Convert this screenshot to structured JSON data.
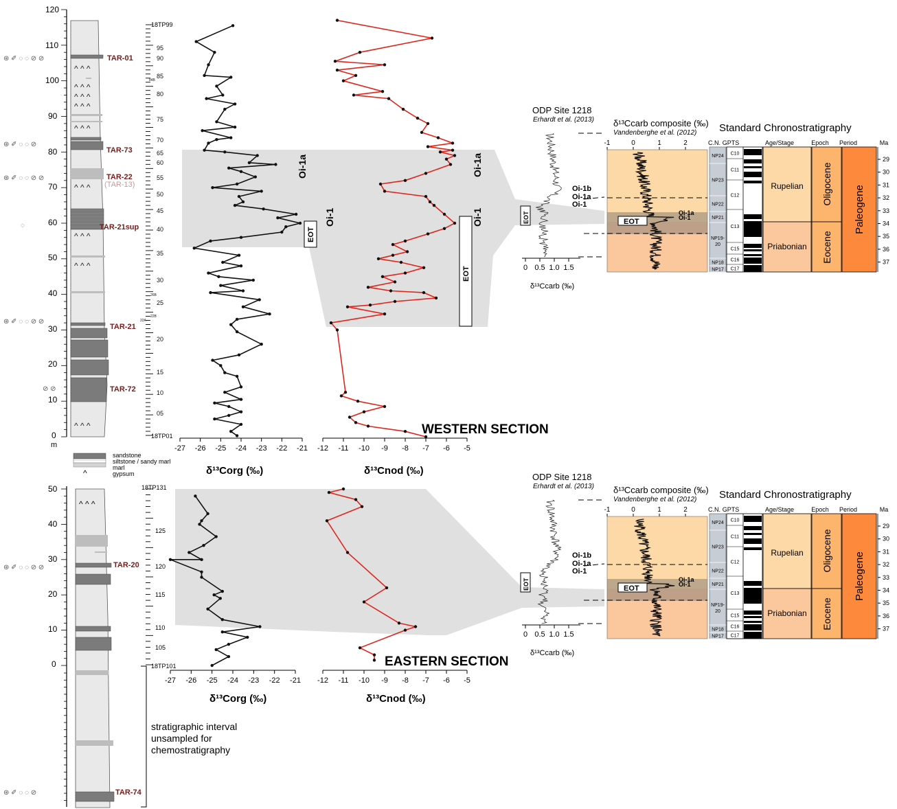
{
  "panels": {
    "western": {
      "label": "WESTERN SECTION",
      "depth_axis": {
        "ticks": [
          "120",
          "110",
          "100",
          "90",
          "80",
          "70",
          "60",
          "50",
          "40",
          "30",
          "20",
          "10",
          "0"
        ],
        "unit": "m"
      },
      "samples": {
        "top": "18TP99",
        "bottom": "18TP01",
        "ticks": [
          "95",
          "90",
          "85",
          "84B",
          "80",
          "75",
          "70",
          "65",
          "60",
          "55",
          "50",
          "45",
          "40",
          "35",
          "30",
          "26B",
          "25",
          "22B",
          "22A",
          "20",
          "15",
          "10",
          "05"
        ]
      },
      "levels": [
        "TAR-01",
        "TAR-73",
        "TAR-22",
        "(TAR-13)",
        "TAR-21sup",
        "TAR-21",
        "TAR-72"
      ],
      "events": {
        "eot": "EOT",
        "oi1": "Oi-1",
        "oi1a": "Oi-1a"
      }
    },
    "eastern": {
      "label": "EASTERN SECTION",
      "depth_axis": {
        "ticks": [
          "50",
          "40",
          "30",
          "20",
          "10",
          "0"
        ]
      },
      "samples": {
        "top": "18TP131",
        "bottom": "18TP101",
        "ticks": [
          "125",
          "120",
          "115",
          "110",
          "105"
        ]
      },
      "levels": [
        "TAR-20",
        "TAR-74"
      ],
      "note": [
        "stratigraphic interval",
        "unsampled for",
        "chemostratigraphy"
      ]
    }
  },
  "legend": {
    "items": [
      "sandstone",
      "siltstone / sandy marl",
      "marl",
      "gypsum"
    ],
    "gypsum_symbol": "^",
    "caret_row": "^ ^ ^"
  },
  "axes": {
    "corg": {
      "label": "δ¹³Corg (‰)",
      "ticks": [
        "-27",
        "-26",
        "-25",
        "-24",
        "-23",
        "-22",
        "-21"
      ]
    },
    "nod": {
      "label": "δ¹³Cnod (‰)",
      "ticks": [
        "-12",
        "-11",
        "-10",
        "-9",
        "-8",
        "-7",
        "-6",
        "-5"
      ]
    }
  },
  "odp": {
    "title": "ODP Site 1218",
    "subtitle": "Erhardt et al. (2013)",
    "xlabel": "δ¹³Ccarb (‰)",
    "ticks": [
      "0",
      "0.5",
      "1.0",
      "1.5"
    ],
    "events": [
      "Oi-1b",
      "Oi-1a",
      "Oi-1"
    ],
    "eot": "EOT"
  },
  "composite": {
    "title": "δ¹³Ccarb composite (‰)",
    "subtitle": "Vandenberghe et al. (2012)",
    "ticks": [
      "-1",
      "0",
      "1",
      "2"
    ],
    "events": [
      "Oi-1a",
      "Oi-1"
    ],
    "eot": "EOT"
  },
  "chrono": {
    "title": "Standard Chronostratigraphy",
    "headers": [
      "C.N.",
      "GPTS",
      "Age/Stage",
      "Epoch",
      "Period",
      "Ma"
    ],
    "cn": [
      "NP24",
      "NP23",
      "NP22",
      "NP21",
      "NP19-20",
      "NP18",
      "NP17"
    ],
    "chrons": [
      "C10",
      "C11",
      "C12",
      "C13",
      "C15",
      "C16",
      "C17"
    ],
    "stages": [
      "Rupelian",
      "Priabonian"
    ],
    "epochs": [
      "Oligocene",
      "Eocene"
    ],
    "period": "Paleogene",
    "ma": [
      "29",
      "30",
      "31",
      "32",
      "33",
      "34",
      "35",
      "36",
      "37"
    ]
  },
  "colors": {
    "corg": "#111111",
    "nod": "#e0241b",
    "band": "#e0e0e0",
    "oligocene": "#fdd9a8",
    "eocene": "#fbc79d",
    "epoch": "#fdb46c",
    "period": "#fd8a3c",
    "cn": "#c6cdd4",
    "label_red": "#7a1a1a"
  },
  "chart_data": [
    {
      "type": "line",
      "title": "WESTERN SECTION",
      "xlabel": "δ¹³Corg (‰)",
      "ylabel": "m",
      "xlim": [
        -27,
        -21
      ],
      "ylim": [
        0,
        120
      ],
      "series": [
        {
          "points": [
            [
              -24.4,
              115.5
            ],
            [
              -26.2,
              111
            ],
            [
              -25.3,
              108
            ],
            [
              -25.6,
              104.5
            ],
            [
              -25.8,
              101.5
            ],
            [
              -24.5,
              101
            ],
            [
              -25.2,
              98.5
            ],
            [
              -24.9,
              96
            ],
            [
              -25.7,
              95
            ],
            [
              -24.3,
              93.5
            ],
            [
              -24.8,
              92
            ],
            [
              -25.2,
              88.5
            ],
            [
              -24.3,
              87
            ],
            [
              -25.9,
              86
            ],
            [
              -24.5,
              84
            ],
            [
              -25.2,
              83.5
            ],
            [
              -25.6,
              82.5
            ],
            [
              -25.8,
              80.5
            ],
            [
              -24.8,
              80
            ],
            [
              -23.2,
              79
            ],
            [
              -23.6,
              77
            ],
            [
              -22.3,
              76.5
            ],
            [
              -24.6,
              75.5
            ],
            [
              -24.0,
              74.5
            ],
            [
              -23.3,
              73
            ],
            [
              -24.2,
              71
            ],
            [
              -25.4,
              70
            ],
            [
              -23.0,
              69
            ],
            [
              -24.1,
              67.5
            ],
            [
              -23.9,
              66
            ],
            [
              -24.3,
              65
            ],
            [
              -22.9,
              64
            ],
            [
              -21.3,
              62.5
            ],
            [
              -22.2,
              61.5
            ],
            [
              -21.1,
              60
            ],
            [
              -21.8,
              59
            ],
            [
              -22.0,
              57.5
            ],
            [
              -24.0,
              56
            ],
            [
              -25.5,
              55
            ],
            [
              -26.3,
              53
            ],
            [
              -24.1,
              51
            ],
            [
              -24.9,
              49
            ],
            [
              -24.0,
              48
            ],
            [
              -25.6,
              46
            ],
            [
              -25.1,
              45
            ],
            [
              -23.4,
              44
            ],
            [
              -25.0,
              42.5
            ],
            [
              -23.9,
              41
            ],
            [
              -25.5,
              40.5
            ],
            [
              -23.1,
              38.5
            ],
            [
              -23.9,
              36.5
            ],
            [
              -22.6,
              34.5
            ],
            [
              -24.2,
              33
            ],
            [
              -24.5,
              31.5
            ],
            [
              -24.2,
              29.5
            ],
            [
              -23.0,
              26
            ],
            [
              -24.1,
              23
            ],
            [
              -25.4,
              21.5
            ],
            [
              -25.0,
              20
            ],
            [
              -24.8,
              18
            ],
            [
              -24.2,
              17
            ],
            [
              -24.0,
              14
            ],
            [
              -24.8,
              12.5
            ],
            [
              -24.0,
              10.5
            ],
            [
              -25.3,
              9.5
            ],
            [
              -24.6,
              8.5
            ],
            [
              -24.0,
              7
            ],
            [
              -24.6,
              6
            ],
            [
              -25.3,
              5
            ],
            [
              -24.0,
              3.5
            ],
            [
              -24.5,
              1.5
            ],
            [
              -24.2,
              0.3
            ]
          ]
        }
      ]
    },
    {
      "type": "line",
      "title": "WESTERN SECTION",
      "xlabel": "δ¹³Cnod (‰)",
      "xlim": [
        -12,
        -5
      ],
      "ylim": [
        0,
        120
      ],
      "series": [
        {
          "points": [
            [
              -11.3,
              117
            ],
            [
              -6.7,
              112
            ],
            [
              -10.2,
              108
            ],
            [
              -11.4,
              105.5
            ],
            [
              -9.0,
              104.5
            ],
            [
              -11.3,
              103
            ],
            [
              -10.4,
              101.5
            ],
            [
              -11.0,
              100
            ],
            [
              -9.1,
              97
            ],
            [
              -10.5,
              96
            ],
            [
              -8.8,
              95
            ],
            [
              -8.1,
              92
            ],
            [
              -7.4,
              89.5
            ],
            [
              -6.9,
              88
            ],
            [
              -7.2,
              85.5
            ],
            [
              -6.4,
              84
            ],
            [
              -5.7,
              82.5
            ],
            [
              -6.9,
              81.5
            ],
            [
              -5.7,
              80.5
            ],
            [
              -6.3,
              80
            ],
            [
              -5.6,
              79
            ],
            [
              -6.0,
              78
            ],
            [
              -5.8,
              76.5
            ],
            [
              -7.0,
              74
            ],
            [
              -8.0,
              72
            ],
            [
              -9.2,
              71
            ],
            [
              -9.0,
              69
            ],
            [
              -7.0,
              67.5
            ],
            [
              -6.8,
              66
            ],
            [
              -6.6,
              65
            ],
            [
              -6.1,
              62.5
            ],
            [
              -5.6,
              60
            ],
            [
              -6.1,
              58.5
            ],
            [
              -6.9,
              57
            ],
            [
              -8.0,
              55
            ],
            [
              -8.6,
              54
            ],
            [
              -7.9,
              52
            ],
            [
              -8.6,
              51
            ],
            [
              -9.3,
              50
            ],
            [
              -8.2,
              49
            ],
            [
              -7.1,
              47.5
            ],
            [
              -8.0,
              46
            ],
            [
              -9.1,
              45
            ],
            [
              -8.5,
              43.5
            ],
            [
              -9.8,
              42
            ],
            [
              -8.7,
              41
            ],
            [
              -7.1,
              40.5
            ],
            [
              -6.5,
              39
            ],
            [
              -8.5,
              38
            ],
            [
              -9.7,
              37
            ],
            [
              -10.8,
              36.5
            ],
            [
              -9.0,
              34.5
            ],
            [
              -11.6,
              32
            ],
            [
              -11.3,
              30
            ],
            [
              -10.9,
              12.5
            ],
            [
              -11.1,
              11.5
            ],
            [
              -10.3,
              10
            ],
            [
              -9.0,
              8.5
            ],
            [
              -10.0,
              7
            ],
            [
              -10.7,
              5.5
            ],
            [
              -10.4,
              4
            ],
            [
              -9.8,
              3
            ],
            [
              -8.0,
              1.5
            ],
            [
              -7.0,
              0
            ]
          ]
        }
      ]
    },
    {
      "type": "line",
      "title": "EASTERN SECTION",
      "xlabel": "δ¹³Corg (‰)",
      "xlim": [
        -27,
        -21
      ],
      "ylim": [
        0,
        50
      ],
      "series": [
        {
          "points": [
            [
              -25.8,
              48
            ],
            [
              -25.2,
              43
            ],
            [
              -25.5,
              41
            ],
            [
              -25.6,
              40
            ],
            [
              -24.8,
              36.5
            ],
            [
              -25.4,
              34
            ],
            [
              -26.1,
              32
            ],
            [
              -25.5,
              30
            ],
            [
              -27.0,
              30
            ],
            [
              -25.5,
              26.5
            ],
            [
              -25.5,
              25
            ],
            [
              -24.5,
              21
            ],
            [
              -24.9,
              20
            ],
            [
              -24.6,
              19
            ],
            [
              -25.2,
              16
            ],
            [
              -24.5,
              13
            ],
            [
              -22.7,
              11
            ],
            [
              -24.5,
              9.5
            ],
            [
              -23.3,
              8
            ],
            [
              -24.2,
              6
            ],
            [
              -24.8,
              4.5
            ],
            [
              -24.2,
              2.5
            ],
            [
              -25.0,
              0
            ]
          ]
        }
      ]
    },
    {
      "type": "line",
      "title": "EASTERN SECTION",
      "xlabel": "δ¹³Cnod (‰)",
      "xlim": [
        -12,
        -5
      ],
      "ylim": [
        0,
        50
      ],
      "series": [
        {
          "points": [
            [
              -11.0,
              50
            ],
            [
              -11.7,
              49
            ],
            [
              -10.4,
              47
            ],
            [
              -10.1,
              45
            ],
            [
              -11.8,
              41
            ],
            [
              -10.8,
              32
            ],
            [
              -8.9,
              22
            ],
            [
              -10.0,
              18
            ],
            [
              -8.3,
              12
            ],
            [
              -7.5,
              11
            ],
            [
              -8.0,
              10
            ],
            [
              -10.2,
              5
            ],
            [
              -9.5,
              3
            ],
            [
              -9.5,
              1.5
            ]
          ]
        }
      ]
    }
  ]
}
